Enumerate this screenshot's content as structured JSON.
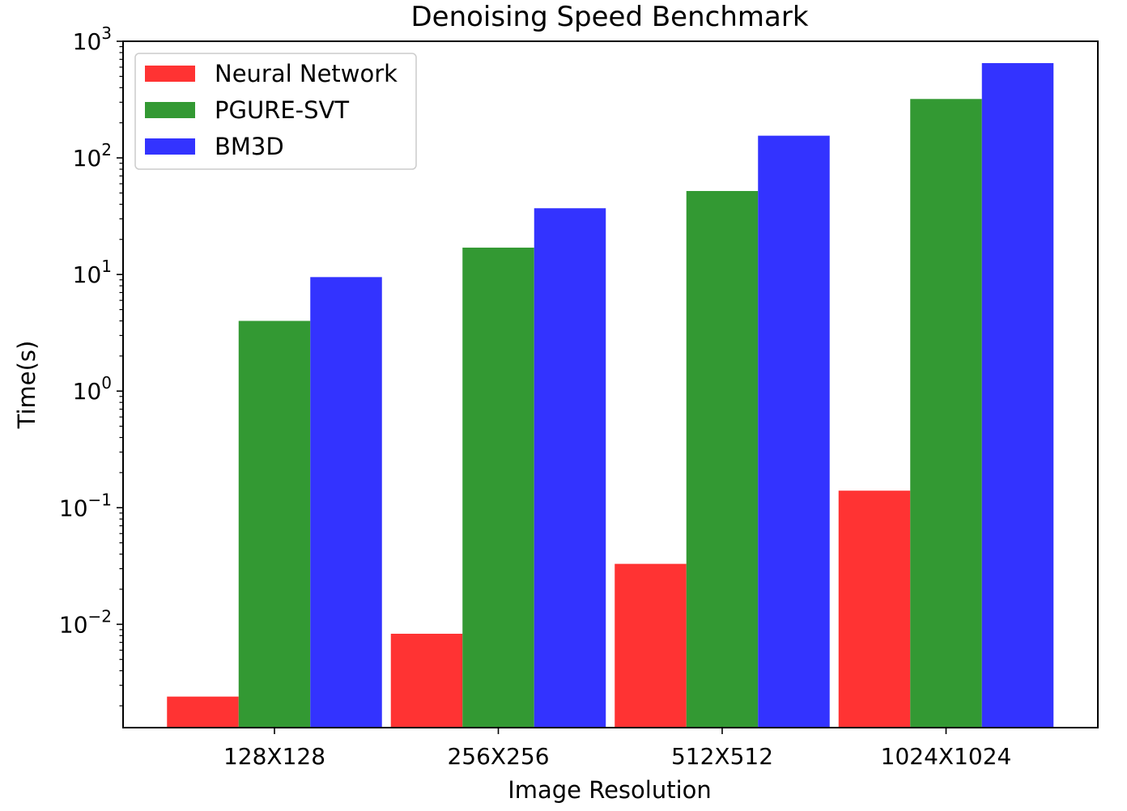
{
  "chart_data": {
    "type": "bar",
    "title": "Denoising Speed Benchmark",
    "xlabel": "Image Resolution",
    "ylabel": "Time(s)",
    "yscale": "log",
    "ylim": [
      0.0013,
      1000
    ],
    "yticks": [
      {
        "value": 0.01,
        "base": "10",
        "exp": "−2"
      },
      {
        "value": 0.1,
        "base": "10",
        "exp": "−1"
      },
      {
        "value": 1,
        "base": "10",
        "exp": "0"
      },
      {
        "value": 10,
        "base": "10",
        "exp": "1"
      },
      {
        "value": 100,
        "base": "10",
        "exp": "2"
      },
      {
        "value": 1000,
        "base": "10",
        "exp": "3"
      }
    ],
    "categories": [
      "128X128",
      "256X256",
      "512X512",
      "1024X1024"
    ],
    "series": [
      {
        "name": "Neural Network",
        "color": "#ff3333",
        "values": [
          0.0024,
          0.0083,
          0.033,
          0.14
        ]
      },
      {
        "name": "PGURE-SVT",
        "color": "#339933",
        "values": [
          4.0,
          17,
          52,
          320
        ]
      },
      {
        "name": "BM3D",
        "color": "#3333ff",
        "values": [
          9.5,
          37,
          155,
          650
        ]
      }
    ],
    "legend": "top-left",
    "grid": false
  }
}
